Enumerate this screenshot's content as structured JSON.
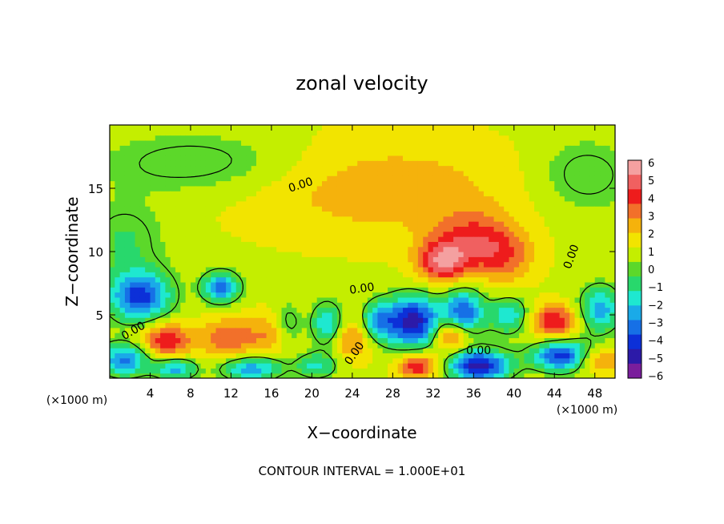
{
  "chart_data": {
    "type": "heatmap",
    "title": "zonal velocity",
    "xlabel": "X−coordinate",
    "ylabel": "Z−coordinate",
    "x_unit_left": "(×1000 m)",
    "x_unit_right": "(×1000 m)",
    "footer": "CONTOUR INTERVAL = 1.000E+01",
    "xlim": [
      0,
      50
    ],
    "ylim": [
      0,
      20
    ],
    "x_ticks": [
      4,
      8,
      12,
      16,
      20,
      24,
      28,
      32,
      36,
      40,
      44,
      48
    ],
    "x_tick_labels": [
      "4",
      "8",
      "12",
      "16",
      "20",
      "24",
      "28",
      "32",
      "36",
      "40",
      "44",
      "48"
    ],
    "y_ticks": [
      5,
      10,
      15
    ],
    "y_tick_labels": [
      "5",
      "10",
      "15"
    ],
    "contour_label": "0.00",
    "colorbar": {
      "min": -6,
      "max": 6,
      "labels": [
        "6",
        "5",
        "4",
        "3",
        "2",
        "1",
        "0",
        "−1",
        "−2",
        "−3",
        "−4",
        "−5",
        "−6"
      ],
      "colors": [
        "#f4a0a0",
        "#f06060",
        "#ee1c1c",
        "#f2702a",
        "#f5b20c",
        "#f2e400",
        "#c4ee00",
        "#5cd82a",
        "#28d86c",
        "#1ee8d0",
        "#1aaae8",
        "#1670e6",
        "#0c30d8",
        "#2c1aa8",
        "#7a1e9c"
      ]
    },
    "field": {
      "background": 1,
      "blobs": [
        {
          "x": 3,
          "z": 6.5,
          "v": -5,
          "rx": 3,
          "rz": 2
        },
        {
          "x": 1.5,
          "z": 1.5,
          "v": -4,
          "rx": 2.5,
          "rz": 1.3
        },
        {
          "x": 5.5,
          "z": 3,
          "v": 3.5,
          "rx": 2.5,
          "rz": 1.4
        },
        {
          "x": 6.5,
          "z": 0.8,
          "v": -3.5,
          "rx": 2,
          "rz": 0.9
        },
        {
          "x": 11,
          "z": 7.2,
          "v": -4.5,
          "rx": 1.8,
          "rz": 1.2
        },
        {
          "x": 12,
          "z": 3.2,
          "v": 2.5,
          "rx": 3,
          "rz": 1.6
        },
        {
          "x": 14,
          "z": 0.8,
          "v": -3.5,
          "rx": 3,
          "rz": 1
        },
        {
          "x": 16.5,
          "z": 3.8,
          "v": 2,
          "rx": 2,
          "rz": 1.6
        },
        {
          "x": 17.5,
          "z": 4.2,
          "v": -2.5,
          "rx": 1.5,
          "rz": 1.6
        },
        {
          "x": 21.5,
          "z": 4.3,
          "v": -3,
          "rx": 1.5,
          "rz": 1.7
        },
        {
          "x": 20.5,
          "z": 1,
          "v": -2.5,
          "rx": 2,
          "rz": 1
        },
        {
          "x": 24,
          "z": 3,
          "v": 2,
          "rx": 2,
          "rz": 1.5
        },
        {
          "x": 26.5,
          "z": 4.5,
          "v": -3,
          "rx": 1.5,
          "rz": 1.5
        },
        {
          "x": 30,
          "z": 4.5,
          "v": -6,
          "rx": 2.8,
          "rz": 2
        },
        {
          "x": 30.5,
          "z": 1,
          "v": 3.5,
          "rx": 2,
          "rz": 1
        },
        {
          "x": 33,
          "z": 9.2,
          "v": 4,
          "rx": 2.5,
          "rz": 1.6
        },
        {
          "x": 36,
          "z": 11,
          "v": 2.5,
          "rx": 4,
          "rz": 2.2
        },
        {
          "x": 39,
          "z": 9.5,
          "v": 2,
          "rx": 3,
          "rz": 2
        },
        {
          "x": 35,
          "z": 5,
          "v": -5,
          "rx": 2,
          "rz": 2
        },
        {
          "x": 34,
          "z": 3.5,
          "v": 4,
          "rx": 2,
          "rz": 1.4
        },
        {
          "x": 36.5,
          "z": 1,
          "v": -6,
          "rx": 3,
          "rz": 1.2
        },
        {
          "x": 39.5,
          "z": 5,
          "v": -3,
          "rx": 1.8,
          "rz": 1.4
        },
        {
          "x": 44,
          "z": 4.5,
          "v": 3.5,
          "rx": 2.2,
          "rz": 1.3
        },
        {
          "x": 45,
          "z": 1.8,
          "v": -5.5,
          "rx": 3,
          "rz": 1.2
        },
        {
          "x": 48.5,
          "z": 5.5,
          "v": -3.5,
          "rx": 2,
          "rz": 1.8
        },
        {
          "x": 48,
          "z": 1.5,
          "v": 3,
          "rx": 2.5,
          "rz": 1
        },
        {
          "x": 9,
          "z": 17,
          "v": -1.5,
          "rx": 10,
          "rz": 2.5
        },
        {
          "x": 47,
          "z": 16,
          "v": -1.5,
          "rx": 5,
          "rz": 3
        },
        {
          "x": 1.5,
          "z": 11,
          "v": -1.5,
          "rx": 4,
          "rz": 3
        },
        {
          "x": 27,
          "z": 15,
          "v": 1.5,
          "rx": 14,
          "rz": 4
        }
      ]
    }
  }
}
